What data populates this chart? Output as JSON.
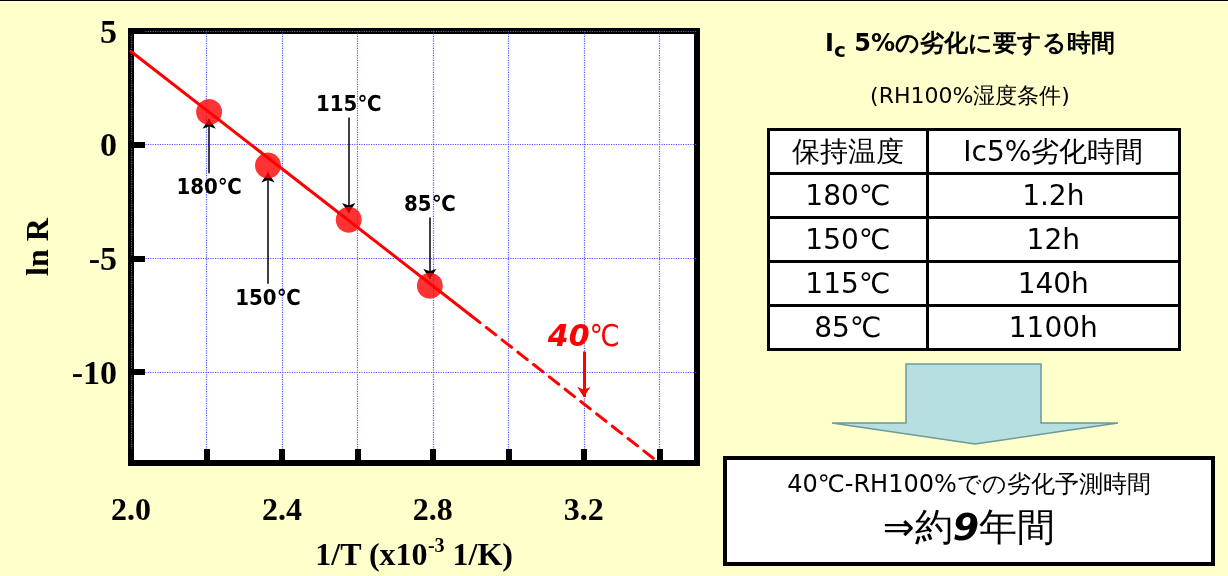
{
  "chart_data": {
    "type": "scatter",
    "title": "I$_{c}$ 5%の劣化に要する時間",
    "subtitle": "(RH100%湿度条件)",
    "xlabel": "1/T (x10$^{-3}$ 1/K)",
    "ylabel": "ln R",
    "series": [
      {
        "color": "#ff0000",
        "x": [
          2.207,
          2.363,
          2.577,
          2.792
        ],
        "values": [
          1.44,
          -0.92,
          -3.3,
          -6.2
        ],
        "marker": "circle"
      },
      {
        "type": "line",
        "color": "#ff0000",
        "x": [
          2.0,
          2.9
        ],
        "values": [
          4.1,
          -7.5
        ],
        "line_style": "solid",
        "marker": "none"
      },
      {
        "type": "line",
        "color": "#ff0000",
        "x": [
          2.9,
          3.4
        ],
        "values": [
          -7.5,
          -14.0
        ],
        "line_style": "dashed",
        "marker": "none"
      }
    ],
    "xlim": [
      2.0,
      3.5
    ],
    "ylim": [
      -14,
      5
    ],
    "xticks": [
      {
        "value": 2.0,
        "label": "2.0"
      },
      {
        "value": 2.2,
        "label": null
      },
      {
        "value": 2.4,
        "label": "2.4"
      },
      {
        "value": 2.6,
        "label": null
      },
      {
        "value": 2.8,
        "label": "2.8"
      },
      {
        "value": 3.0,
        "label": null
      },
      {
        "value": 3.2,
        "label": "3.2"
      },
      {
        "value": 3.4,
        "label": null
      }
    ],
    "yticks": [
      5,
      0,
      -5,
      -10
    ],
    "grid": true,
    "annotations": [
      {
        "text": "180℃",
        "x": 2.207,
        "y": 1.44
      },
      {
        "text": "150℃",
        "x": 2.363,
        "y": -0.92
      },
      {
        "text": "115℃",
        "x": 2.577,
        "y": -3.3
      },
      {
        "text": "85℃",
        "x": 2.792,
        "y": -6.2
      },
      {
        "text": "40℃",
        "x": 3.2,
        "y": -11.4
      },
      "保持温度",
      "Ic5%劣化時間",
      "180℃",
      "1.2h",
      "150℃",
      "12h",
      "115℃",
      "140h",
      "85℃",
      "1100h",
      "40℃-RH100%での劣化予測時間",
      "⇒約9年間"
    ]
  }
}
